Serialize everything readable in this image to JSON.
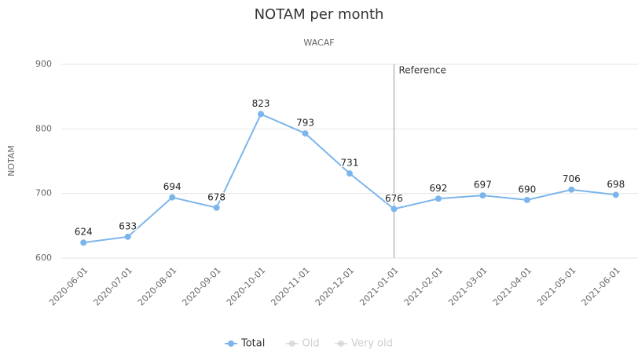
{
  "chart_data": {
    "type": "line",
    "title": "NOTAM per month",
    "subtitle": "WACAF",
    "y_label": "NOTAM",
    "categories": [
      "2020-06-01",
      "2020-07-01",
      "2020-08-01",
      "2020-09-01",
      "2020-10-01",
      "2020-11-01",
      "2020-12-01",
      "2021-01-01",
      "2021-02-01",
      "2021-03-01",
      "2021-04-01",
      "2021-05-01",
      "2021-06-01"
    ],
    "series": [
      {
        "name": "Total",
        "color": "#7cb5ec",
        "values": [
          624,
          633,
          694,
          678,
          823,
          793,
          731,
          676,
          692,
          697,
          690,
          706,
          698
        ]
      },
      {
        "name": "Old",
        "color": "#cccccc",
        "hidden": true,
        "values": [
          null,
          null,
          null,
          null,
          null,
          null,
          null,
          null,
          null,
          null,
          null,
          null,
          null
        ]
      },
      {
        "name": "Very old",
        "color": "#cccccc",
        "hidden": true,
        "values": [
          null,
          null,
          null,
          null,
          null,
          null,
          null,
          null,
          null,
          null,
          null,
          null,
          null
        ]
      }
    ],
    "ylim": [
      600,
      900
    ],
    "yticks": [
      600,
      700,
      800,
      900
    ],
    "grid": true,
    "annotations": [
      {
        "x": "2021-01-01",
        "label": "Reference"
      }
    ],
    "legend": "bottom"
  }
}
